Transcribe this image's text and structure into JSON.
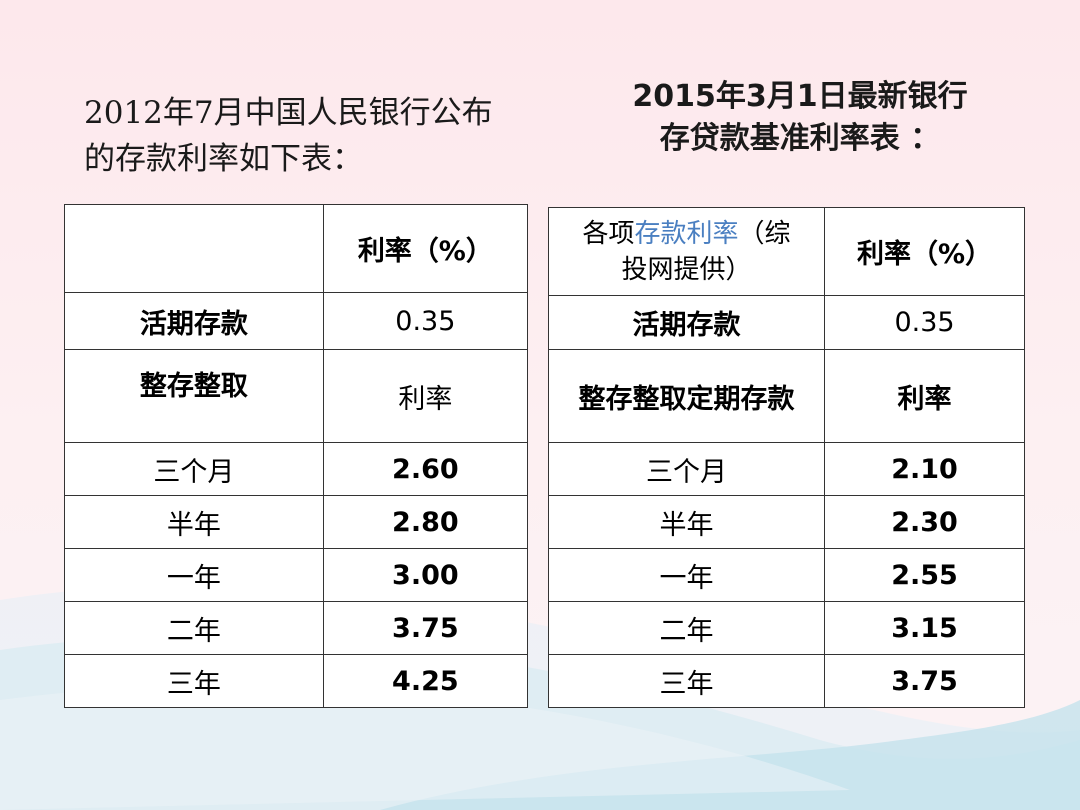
{
  "left_heading": "2012年7月中国人民银行公布的存款利率如下表：",
  "right_heading_line1": "2015年3月1日最新银行",
  "right_heading_line2": "存贷款基准利率表 ：",
  "left_table": {
    "header": [
      "",
      "利率（%）"
    ],
    "demand": [
      "活期存款",
      "0.35"
    ],
    "fixed_header": [
      "整存整取",
      "利率"
    ],
    "rows": [
      [
        "三个月",
        "2.60"
      ],
      [
        "半年",
        "2.80"
      ],
      [
        "一年",
        "3.00"
      ],
      [
        "二年",
        "3.75"
      ],
      [
        "三年",
        "4.25"
      ]
    ]
  },
  "right_table": {
    "header_prefix": "各项",
    "header_link": "存款利率",
    "header_suffix": "（综",
    "header_line2": "投网提供）",
    "header_col2": "利率（%）",
    "demand": [
      "活期存款",
      "0.35"
    ],
    "fixed_header": [
      "整存整取定期存款",
      "利率"
    ],
    "rows": [
      [
        "三个月",
        "2.10"
      ],
      [
        "半年",
        "2.30"
      ],
      [
        "一年",
        "2.55"
      ],
      [
        "二年",
        "3.15"
      ],
      [
        "三年",
        "3.75"
      ]
    ]
  },
  "colors": {
    "background": "#fde8ec",
    "link": "#4a7fc1",
    "wave": "#cfe6ee"
  }
}
